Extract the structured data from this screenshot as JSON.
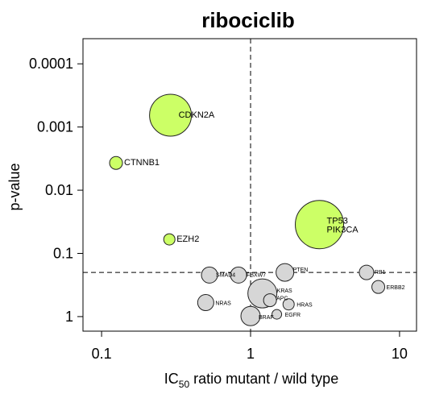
{
  "chart_data": {
    "type": "scatter",
    "title": "ribociclib",
    "xlabel": {
      "prefix": "IC",
      "sub": "50",
      "suffix": " ratio mutant / wild type"
    },
    "ylabel": "p-value",
    "x_scale": "log",
    "y_scale": "log-reversed",
    "xlim": [
      0.075,
      13
    ],
    "ylim": [
      1.7,
      4e-05
    ],
    "x_ticks": [
      {
        "value": 0.1,
        "label": "0.1"
      },
      {
        "value": 1,
        "label": "1"
      },
      {
        "value": 10,
        "label": "10"
      }
    ],
    "y_ticks": [
      {
        "value": 0.0001,
        "label": "0.0001"
      },
      {
        "value": 0.001,
        "label": "0.001"
      },
      {
        "value": 0.01,
        "label": "0.01"
      },
      {
        "value": 0.1,
        "label": "0.1"
      },
      {
        "value": 1,
        "label": "1"
      }
    ],
    "reference_lines": {
      "x": 1,
      "y": 0.2
    },
    "colors": {
      "significant": "#ccff66",
      "not_significant": "#d6d6d6",
      "outline": "#222222"
    },
    "points": [
      {
        "label": "CDKN2A",
        "x": 0.29,
        "y": 0.00065,
        "size": 26,
        "significant": true
      },
      {
        "label": "CTNNB1",
        "x": 0.125,
        "y": 0.0037,
        "size": 8,
        "significant": true
      },
      {
        "label": "EZH2",
        "x": 0.285,
        "y": 0.06,
        "size": 7,
        "significant": true
      },
      {
        "label": "TP53",
        "x": 2.9,
        "y": 0.035,
        "size": 30,
        "significant": true
      },
      {
        "label": "PIK3CA",
        "x": 2.9,
        "y": 0.035,
        "size": 0,
        "significant": true
      },
      {
        "label": "SMAD4",
        "x": 0.53,
        "y": 0.22,
        "size": 10,
        "significant": false
      },
      {
        "label": "FBXW7",
        "x": 0.83,
        "y": 0.22,
        "size": 10,
        "significant": false
      },
      {
        "label": "PTEN",
        "x": 1.7,
        "y": 0.2,
        "size": 11,
        "significant": false
      },
      {
        "label": "RB1",
        "x": 6.0,
        "y": 0.2,
        "size": 9,
        "significant": false
      },
      {
        "label": "ERBB2",
        "x": 7.2,
        "y": 0.34,
        "size": 8,
        "significant": false
      },
      {
        "label": "KRAS",
        "x": 1.2,
        "y": 0.43,
        "size": 18,
        "significant": false
      },
      {
        "label": "APC",
        "x": 1.35,
        "y": 0.55,
        "size": 8,
        "significant": false
      },
      {
        "label": "HRAS",
        "x": 1.8,
        "y": 0.64,
        "size": 7,
        "significant": false
      },
      {
        "label": "NRAS",
        "x": 0.5,
        "y": 0.6,
        "size": 10,
        "significant": false
      },
      {
        "label": "BRAF",
        "x": 1.0,
        "y": 0.98,
        "size": 12,
        "significant": false
      },
      {
        "label": "EGFR",
        "x": 1.5,
        "y": 0.92,
        "size": 6,
        "significant": false
      }
    ]
  }
}
